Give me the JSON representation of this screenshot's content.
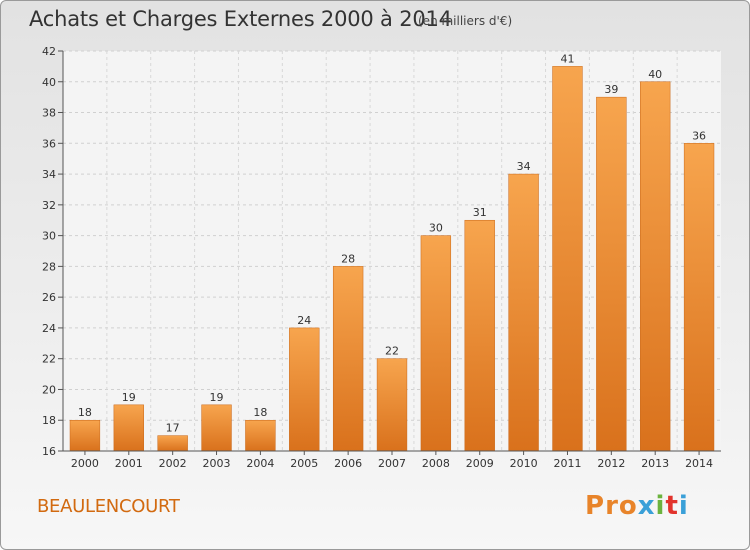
{
  "chart_data": {
    "type": "bar",
    "title": "Achats et Charges Externes 2000 à 2014",
    "subtitle": "(en milliers d'€)",
    "categories": [
      "2000",
      "2001",
      "2002",
      "2003",
      "2004",
      "2005",
      "2006",
      "2007",
      "2008",
      "2009",
      "2010",
      "2011",
      "2012",
      "2013",
      "2014"
    ],
    "values": [
      18,
      19,
      17,
      19,
      18,
      24,
      28,
      22,
      30,
      31,
      34,
      41,
      39,
      40,
      36
    ],
    "ylim": [
      16,
      42
    ],
    "yticks": [
      16,
      18,
      20,
      22,
      24,
      26,
      28,
      30,
      32,
      34,
      36,
      38,
      40,
      42
    ],
    "grid": true,
    "bar_color": "#f08a2a",
    "xlabel": "",
    "ylabel": ""
  },
  "footer": {
    "commune": "BEAULENCOURT",
    "logo_text": "Proxiti",
    "logo_colors": [
      "#e8842a",
      "#e8842a",
      "#e8842a",
      "#3aa0d8",
      "#6cb33e",
      "#e2332c",
      "#3aa0d8"
    ]
  }
}
